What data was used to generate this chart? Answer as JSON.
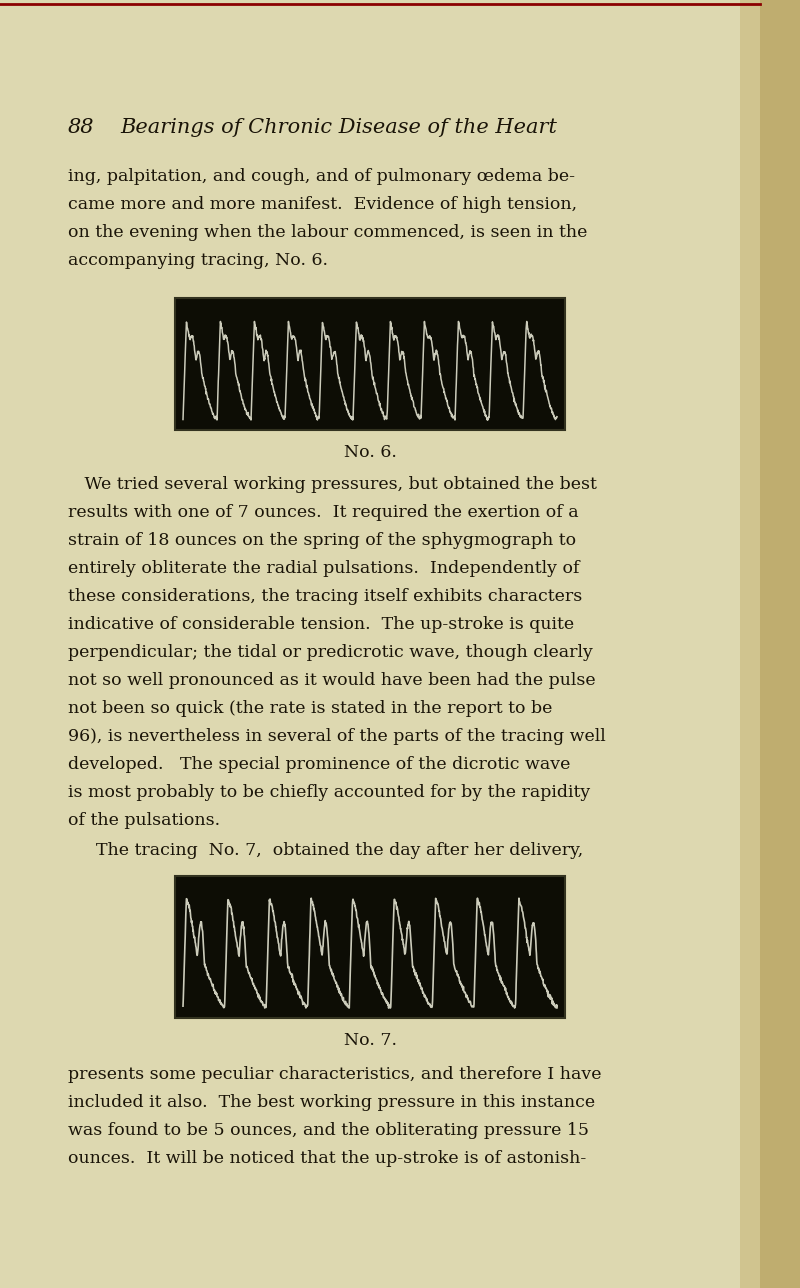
{
  "page_bg_color": "#ddd8b0",
  "page_number": "88",
  "page_title": "Bearings of Chronic Disease of the Heart",
  "text_color": "#1a1408",
  "body_font_size": 12.5,
  "title_font_size": 15,
  "tracing_bg": "#0d0d05",
  "tracing_line_color": "#ccccbb",
  "label_no6": "No. 6.",
  "label_no7": "No. 7.",
  "right_shadow_color": "#b8a878",
  "top_red_line_color": "#8b0000"
}
